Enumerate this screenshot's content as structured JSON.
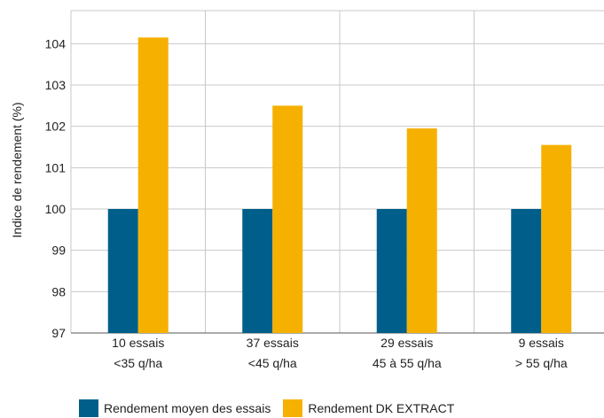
{
  "chart_data": {
    "type": "bar",
    "categories": [
      [
        "10 essais",
        "<35 q/ha"
      ],
      [
        "37 essais",
        "<45 q/ha"
      ],
      [
        "29 essais",
        "45 à 55 q/ha"
      ],
      [
        "9 essais",
        "> 55 q/ha"
      ]
    ],
    "series": [
      {
        "name": "Rendement moyen des essais",
        "values": [
          100,
          100,
          100,
          100
        ],
        "color": "#005f8a"
      },
      {
        "name": "Rendement DK EXTRACT",
        "values": [
          104.15,
          102.5,
          101.95,
          101.55
        ],
        "color": "#f6b000"
      }
    ],
    "ylabel": "Indice de rendement (%)",
    "xlabel": "",
    "ylim": [
      97,
      104.8
    ],
    "yticks": [
      97,
      98,
      99,
      100,
      101,
      102,
      103,
      104
    ],
    "grid": true,
    "legend_position": "bottom"
  }
}
